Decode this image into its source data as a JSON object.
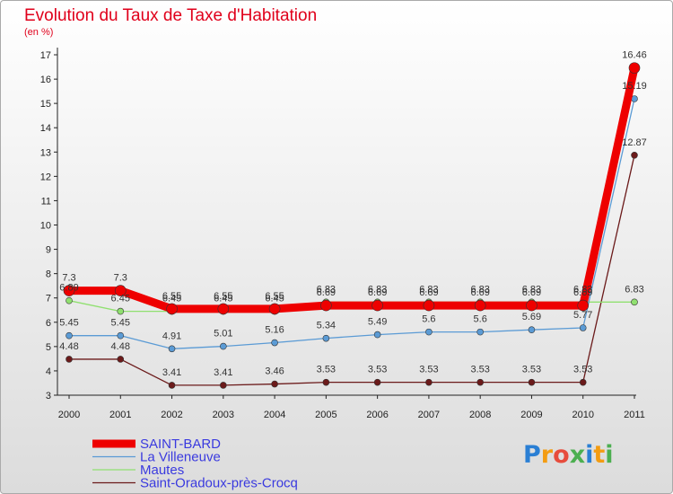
{
  "chart_data": {
    "type": "line",
    "title": "Evolution du Taux de Taxe d'Habitation",
    "subtitle": "(en %)",
    "xlabel": "",
    "ylabel": "",
    "x": [
      "2000",
      "2001",
      "2002",
      "2003",
      "2004",
      "2005",
      "2006",
      "2007",
      "2008",
      "2009",
      "2010",
      "2011"
    ],
    "ylim": [
      3,
      17
    ],
    "yticks": [
      "3",
      "4",
      "5",
      "6",
      "7",
      "8",
      "9",
      "10",
      "11",
      "12",
      "13",
      "14",
      "15",
      "16",
      "17"
    ],
    "grid": false,
    "legend": "bottom-left",
    "series": [
      {
        "name": "Saint-Oradoux-près-Crocq",
        "color": "#6b1a1a",
        "values": [
          4.48,
          4.48,
          3.41,
          3.41,
          3.46,
          3.53,
          3.53,
          3.53,
          3.53,
          3.53,
          3.53,
          12.87
        ],
        "labels": [
          "4.48",
          "4.48",
          "3.41",
          "3.41",
          "3.46",
          "3.53",
          "3.53",
          "3.53",
          "3.53",
          "3.53",
          "3.53",
          "12.87"
        ]
      },
      {
        "name": "Mautes",
        "color": "#90e070",
        "values": [
          6.89,
          6.45,
          6.45,
          6.45,
          6.45,
          6.83,
          6.83,
          6.83,
          6.83,
          6.83,
          6.83,
          6.83
        ],
        "labels": [
          "6.89",
          "6.45",
          "6.45",
          "6.45",
          "6.45",
          "6.83",
          "6.83",
          "6.83",
          "6.83",
          "6.83",
          "6.83",
          "6.83"
        ]
      },
      {
        "name": "La Villeneuve",
        "color": "#5b9bd5",
        "values": [
          5.45,
          5.45,
          4.91,
          5.01,
          5.16,
          5.34,
          5.49,
          5.6,
          5.6,
          5.69,
          5.77,
          15.19
        ],
        "labels": [
          "5.45",
          "5.45",
          "4.91",
          "5.01",
          "5.16",
          "5.34",
          "5.49",
          "5.6",
          "5.6",
          "5.69",
          "5.77",
          "15.19"
        ]
      },
      {
        "name": "SAINT-BARD",
        "color": "#ee0000",
        "values": [
          7.3,
          7.3,
          6.55,
          6.55,
          6.55,
          6.69,
          6.69,
          6.69,
          6.69,
          6.69,
          6.69,
          16.46
        ],
        "labels": [
          "7.3",
          "7.3",
          "6.55",
          "6.55",
          "6.55",
          "6.69",
          "6.69",
          "6.69",
          "6.69",
          "6.69",
          "6.69",
          "16.46"
        ]
      }
    ],
    "legend_order": [
      "SAINT-BARD",
      "La Villeneuve",
      "Mautes",
      "Saint-Oradoux-près-Crocq"
    ]
  },
  "logo": {
    "letters": [
      "P",
      "r",
      "o",
      "x",
      "i",
      "t",
      "i"
    ],
    "colors": [
      "#2a7fd4",
      "#f39c12",
      "#e74c3c",
      "#4caf50",
      "#2a7fd4",
      "#f39c12",
      "#4caf50"
    ]
  }
}
